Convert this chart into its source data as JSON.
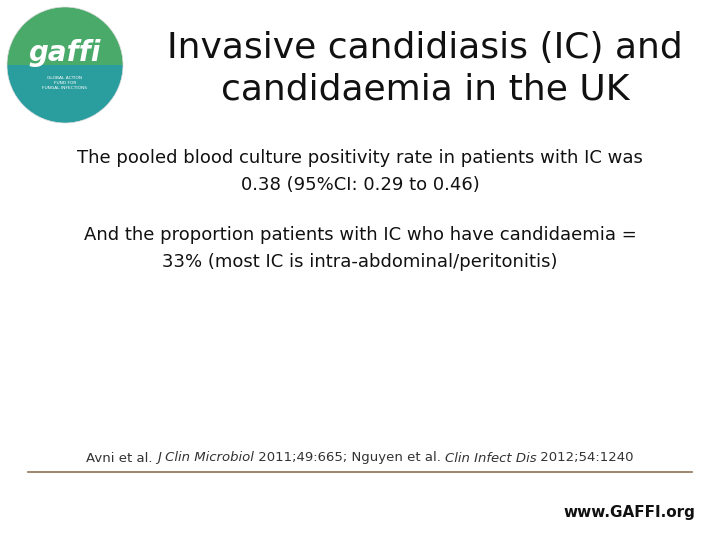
{
  "title_line1": "Invasive candidiasis (IC) and",
  "title_line2": "candidaemia in the UK",
  "title_fontsize": 26,
  "title_color": "#111111",
  "body_text1_line1": "The pooled blood culture positivity rate in patients with IC was",
  "body_text1_line2": "0.38 (95%CI: 0.29 to 0.46)",
  "body_text2_line1": "And the proportion patients with IC who have candidaemia =",
  "body_text2_line2": "33% (most IC is intra-abdominal/peritonitis)",
  "body_fontsize": 13,
  "body_color": "#111111",
  "footer_parts": [
    [
      "Avni et al. ",
      "normal"
    ],
    [
      "J Clin Microbiol",
      "italic"
    ],
    [
      " 2011;49:665; Nguyen et al. ",
      "normal"
    ],
    [
      "Clin Infect Dis",
      "italic"
    ],
    [
      " 2012;54:1240",
      "normal"
    ]
  ],
  "footer_fontsize": 9.5,
  "footer_color": "#333333",
  "website_text": "www.GAFFI.org",
  "website_fontsize": 11,
  "website_color": "#111111",
  "background_color": "#ffffff",
  "line_color": "#8B7355",
  "logo_color_top": "#4aaa6a",
  "logo_color_bottom": "#2a9d9f",
  "logo_text_color": "#ffffff"
}
